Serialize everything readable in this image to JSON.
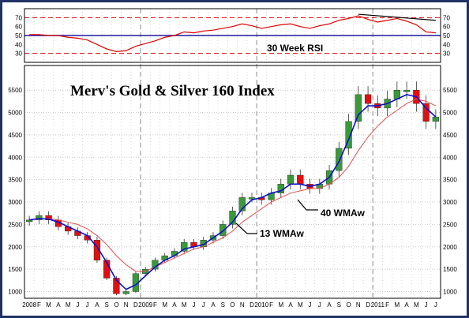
{
  "chart_data": {
    "type": "candlestick",
    "title": "Merv's Gold & Silver 160 Index",
    "rsi_panel": {
      "label": "30 Week RSI",
      "ylim": [
        20,
        80
      ],
      "ticks": [
        30,
        40,
        50,
        60,
        70
      ],
      "reference_lines": [
        30,
        50,
        70
      ],
      "colors": {
        "rsi": "#e00000",
        "mid_line": "#1a1aa0",
        "bounds": "#e00000",
        "trend": "#000000"
      }
    },
    "price_panel": {
      "ylim": [
        850,
        6050
      ],
      "ticks": [
        1000,
        1500,
        2000,
        2500,
        3000,
        3500,
        4000,
        4500,
        5000,
        5500
      ],
      "colors": {
        "up": "#3a9a3a",
        "down": "#e01010",
        "wma13": "#1010c8",
        "wma40": "#e05050"
      }
    },
    "x_axis": {
      "labels": [
        "2008",
        "F",
        "M",
        "A",
        "M",
        "J",
        "J",
        "A",
        "S",
        "O",
        "N",
        "D",
        "2009",
        "F",
        "M",
        "A",
        "M",
        "J",
        "J",
        "A",
        "S",
        "O",
        "N",
        "D",
        "2010",
        "F",
        "M",
        "A",
        "M",
        "J",
        "J",
        "A",
        "S",
        "O",
        "N",
        "D",
        "2011",
        "F",
        "M",
        "A",
        "M",
        "J",
        "J"
      ],
      "year_labels": [
        "2008",
        "2009",
        "2010",
        "2011"
      ]
    },
    "annotations": [
      {
        "text": "13 WMAw",
        "series": "13 WMAw"
      },
      {
        "text": "40 WMAw",
        "series": "40 WMAw"
      }
    ],
    "months": [
      "2008-01",
      "2008-02",
      "2008-03",
      "2008-04",
      "2008-05",
      "2008-06",
      "2008-07",
      "2008-08",
      "2008-09",
      "2008-10",
      "2008-11",
      "2008-12",
      "2009-01",
      "2009-02",
      "2009-03",
      "2009-04",
      "2009-05",
      "2009-06",
      "2009-07",
      "2009-08",
      "2009-09",
      "2009-10",
      "2009-11",
      "2009-12",
      "2010-01",
      "2010-02",
      "2010-03",
      "2010-04",
      "2010-05",
      "2010-06",
      "2010-07",
      "2010-08",
      "2010-09",
      "2010-10",
      "2010-11",
      "2010-12",
      "2011-01",
      "2011-02",
      "2011-03",
      "2011-04",
      "2011-05",
      "2011-06",
      "2011-07"
    ],
    "close": [
      2600,
      2700,
      2600,
      2450,
      2350,
      2250,
      2150,
      1700,
      1300,
      950,
      1000,
      1400,
      1500,
      1700,
      1800,
      1900,
      2100,
      2000,
      2150,
      2250,
      2500,
      2800,
      3100,
      3100,
      3050,
      3200,
      3400,
      3600,
      3400,
      3300,
      3400,
      3700,
      4200,
      4800,
      5400,
      5200,
      5100,
      5300,
      5500,
      5500,
      5200,
      4800,
      4900
    ],
    "wma13": [
      2600,
      2630,
      2620,
      2550,
      2450,
      2350,
      2250,
      2000,
      1650,
      1250,
      1050,
      1150,
      1350,
      1550,
      1700,
      1800,
      1950,
      2000,
      2050,
      2200,
      2350,
      2550,
      2850,
      3050,
      3100,
      3200,
      3250,
      3400,
      3400,
      3350,
      3400,
      3550,
      3900,
      4400,
      4950,
      5150,
      5150,
      5200,
      5300,
      5400,
      5350,
      5100,
      4900
    ],
    "wma40": [
      2600,
      2620,
      2630,
      2600,
      2550,
      2500,
      2400,
      2250,
      2050,
      1800,
      1600,
      1450,
      1450,
      1550,
      1650,
      1750,
      1850,
      1950,
      2000,
      2100,
      2200,
      2350,
      2550,
      2700,
      2850,
      3000,
      3100,
      3200,
      3250,
      3300,
      3300,
      3400,
      3550,
      3800,
      4150,
      4450,
      4700,
      4900,
      5050,
      5200,
      5300,
      5250,
      5150
    ],
    "rsi": [
      51,
      51,
      50,
      50,
      48,
      47,
      45,
      40,
      35,
      32,
      33,
      38,
      41,
      44,
      48,
      50,
      54,
      53,
      55,
      56,
      58,
      60,
      63,
      61,
      58,
      60,
      62,
      63,
      60,
      58,
      61,
      63,
      67,
      69,
      72,
      68,
      65,
      67,
      69,
      66,
      62,
      54,
      53
    ]
  }
}
